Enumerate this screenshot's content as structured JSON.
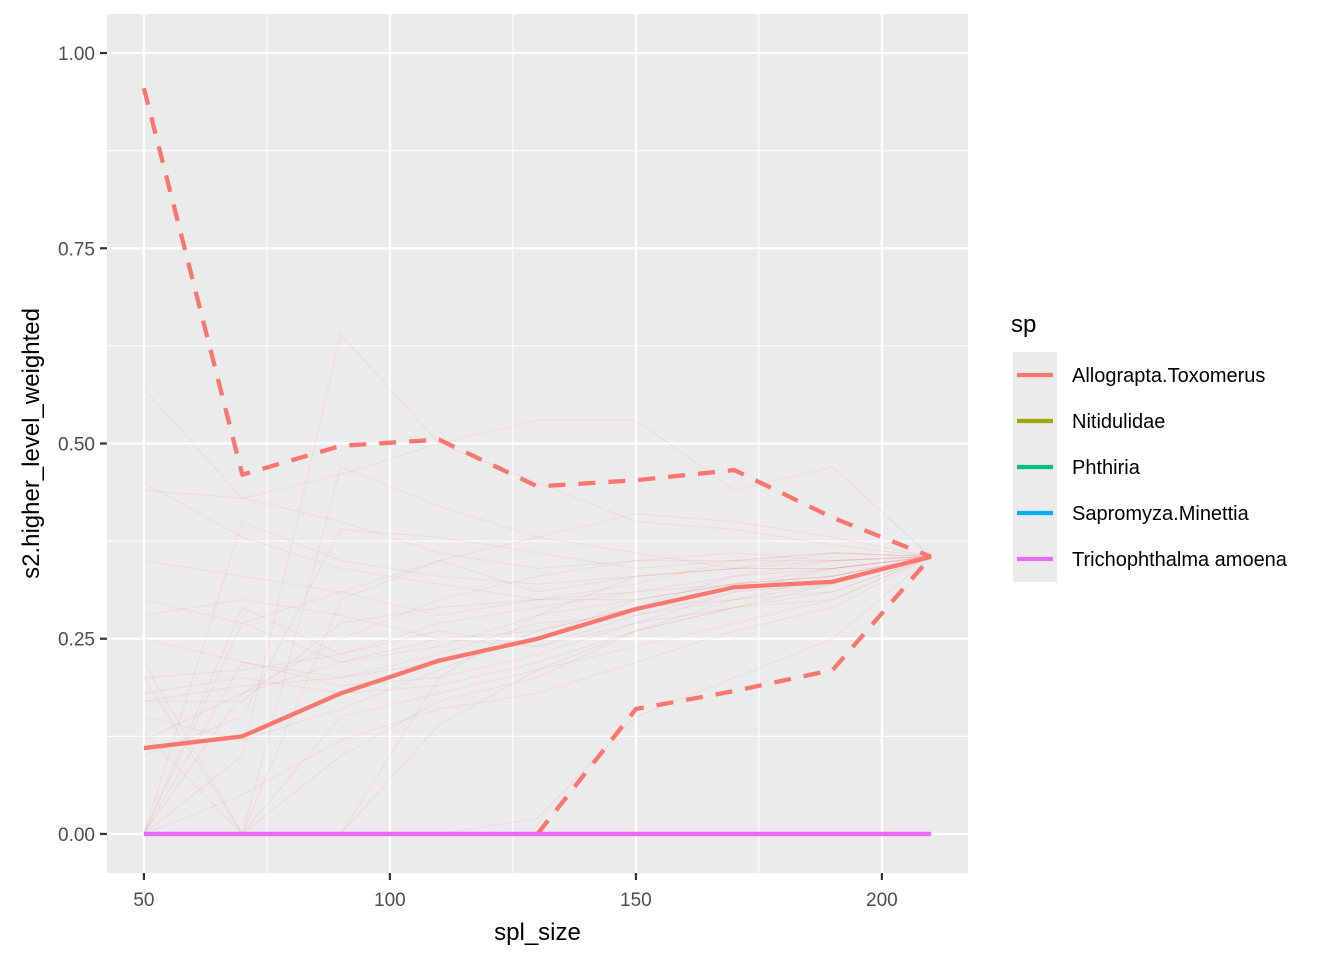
{
  "chart_data": {
    "type": "line",
    "title": "",
    "xlabel": "spl_size",
    "ylabel": "s2.higher_level_weighted",
    "xlim": [
      42.5,
      217.5
    ],
    "ylim": [
      -0.05,
      1.05
    ],
    "x_ticks": [
      50,
      100,
      150,
      200
    ],
    "x_tick_labels": [
      "50",
      "100",
      "150",
      "200"
    ],
    "y_ticks": [
      0,
      0.25,
      0.5,
      0.75,
      1.0
    ],
    "y_tick_labels": [
      "0.00",
      "0.25",
      "0.50",
      "0.75",
      "1.00"
    ],
    "grid": true,
    "legend": {
      "title": "sp",
      "position": "right",
      "entries": [
        {
          "name": "Allograpta.Toxomerus",
          "color": "#F8766D"
        },
        {
          "name": "Nitidulidae",
          "color": "#A3A500"
        },
        {
          "name": "Phthiria",
          "color": "#00BF7D"
        },
        {
          "name": "Sapromyza.Minettia",
          "color": "#00B0F6"
        },
        {
          "name": "Trichophthalma amoena",
          "color": "#E76BF3"
        }
      ]
    },
    "x": [
      50,
      70,
      90,
      110,
      130,
      150,
      170,
      190,
      210
    ],
    "series": [
      {
        "name": "Allograpta.Toxomerus",
        "style": "solid",
        "color": "#F8766D",
        "values": [
          0.11,
          0.125,
          0.18,
          0.222,
          0.25,
          0.288,
          0.316,
          0.323,
          0.355
        ]
      },
      {
        "name": "Allograpta.Toxomerus",
        "style": "dashed",
        "color": "#F8766D",
        "values": [
          0.955,
          0.46,
          0.497,
          0.505,
          0.445,
          0.453,
          0.466,
          0.405,
          0.355
        ]
      },
      {
        "name": "Allograpta.Toxomerus",
        "style": "dashed",
        "color": "#F8766D",
        "values": [
          null,
          null,
          null,
          null,
          0.0,
          0.16,
          0.183,
          0.21,
          0.355
        ]
      },
      {
        "name": "Trichophthalma amoena",
        "style": "solid",
        "color": "#E76BF3",
        "values": [
          0,
          0,
          0,
          0,
          0,
          0,
          0,
          0,
          0
        ]
      }
    ],
    "replicate_lines": {
      "color": "#F8766D",
      "lines": [
        [
          0.0,
          0.18,
          0.25,
          0.3,
          0.33,
          0.35,
          0.35,
          0.36,
          0.355
        ],
        [
          0.17,
          0.19,
          0.2,
          0.22,
          0.25,
          0.3,
          0.32,
          0.33,
          0.355
        ],
        [
          0.44,
          0.43,
          0.4,
          0.36,
          0.34,
          0.35,
          0.36,
          0.35,
          0.355
        ],
        [
          0.22,
          0.0,
          0.3,
          0.35,
          0.31,
          0.33,
          0.34,
          0.34,
          0.355
        ],
        [
          0.0,
          0.0,
          0.0,
          0.2,
          0.28,
          0.3,
          0.32,
          0.33,
          0.355
        ],
        [
          0.57,
          0.43,
          0.46,
          0.5,
          0.45,
          0.4,
          0.39,
          0.37,
          0.355
        ],
        [
          0.18,
          0.2,
          0.18,
          0.19,
          0.22,
          0.26,
          0.29,
          0.31,
          0.355
        ],
        [
          0.0,
          0.1,
          0.64,
          0.5,
          0.53,
          0.53,
          0.44,
          0.47,
          0.355
        ],
        [
          0.17,
          0.17,
          0.27,
          0.29,
          0.3,
          0.31,
          0.32,
          0.34,
          0.355
        ],
        [
          0.0,
          0.0,
          0.0,
          0.0,
          0.02,
          0.15,
          0.2,
          0.25,
          0.355
        ],
        [
          0.3,
          0.27,
          0.22,
          0.24,
          0.28,
          0.33,
          0.34,
          0.35,
          0.355
        ],
        [
          0.1,
          0.15,
          0.39,
          0.38,
          0.36,
          0.34,
          0.35,
          0.35,
          0.355
        ],
        [
          0.0,
          0.29,
          0.23,
          0.27,
          0.29,
          0.31,
          0.33,
          0.34,
          0.355
        ],
        [
          0.2,
          0.21,
          0.23,
          0.26,
          0.24,
          0.28,
          0.3,
          0.32,
          0.355
        ],
        [
          0.0,
          0.0,
          0.15,
          0.18,
          0.21,
          0.24,
          0.27,
          0.3,
          0.355
        ],
        [
          0.35,
          0.33,
          0.31,
          0.28,
          0.3,
          0.3,
          0.32,
          0.33,
          0.355
        ],
        [
          0.13,
          0.0,
          0.1,
          0.17,
          0.2,
          0.26,
          0.3,
          0.33,
          0.355
        ],
        [
          0.0,
          0.4,
          0.35,
          0.33,
          0.32,
          0.33,
          0.34,
          0.36,
          0.355
        ],
        [
          0.25,
          0.22,
          0.19,
          0.2,
          0.23,
          0.27,
          0.31,
          0.34,
          0.355
        ],
        [
          0.0,
          0.0,
          0.47,
          0.42,
          0.38,
          0.36,
          0.34,
          0.34,
          0.355
        ],
        [
          0.15,
          0.12,
          0.16,
          0.21,
          0.26,
          0.29,
          0.3,
          0.31,
          0.355
        ],
        [
          0.0,
          0.22,
          0.2,
          0.23,
          0.27,
          0.28,
          0.31,
          0.32,
          0.355
        ],
        [
          0.28,
          0.3,
          0.28,
          0.25,
          0.26,
          0.29,
          0.33,
          0.35,
          0.355
        ],
        [
          0.0,
          0.05,
          0.12,
          0.16,
          0.18,
          0.22,
          0.26,
          0.29,
          0.355
        ],
        [
          0.45,
          0.38,
          0.34,
          0.32,
          0.3,
          0.32,
          0.35,
          0.36,
          0.355
        ],
        [
          0.2,
          0.0,
          0.0,
          0.14,
          0.21,
          0.26,
          0.29,
          0.32,
          0.355
        ],
        [
          0.0,
          0.27,
          0.31,
          0.35,
          0.38,
          0.41,
          0.4,
          0.38,
          0.355
        ],
        [
          0.12,
          0.18,
          0.22,
          0.25,
          0.24,
          0.27,
          0.29,
          0.3,
          0.355
        ]
      ]
    }
  }
}
